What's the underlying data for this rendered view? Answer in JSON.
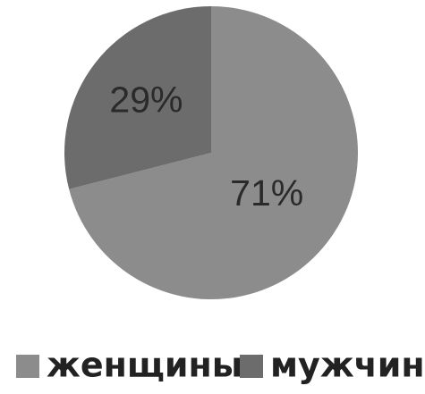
{
  "chart_data": {
    "type": "pie",
    "categories": [
      "женщины",
      "мужчины"
    ],
    "values": [
      71,
      29
    ],
    "labels": [
      "71%",
      "29%"
    ],
    "colors": [
      "#8c8c8c",
      "#6c6c6c"
    ],
    "legend": {
      "position": "bottom",
      "entries": [
        "женщины",
        "мужчины"
      ]
    }
  }
}
